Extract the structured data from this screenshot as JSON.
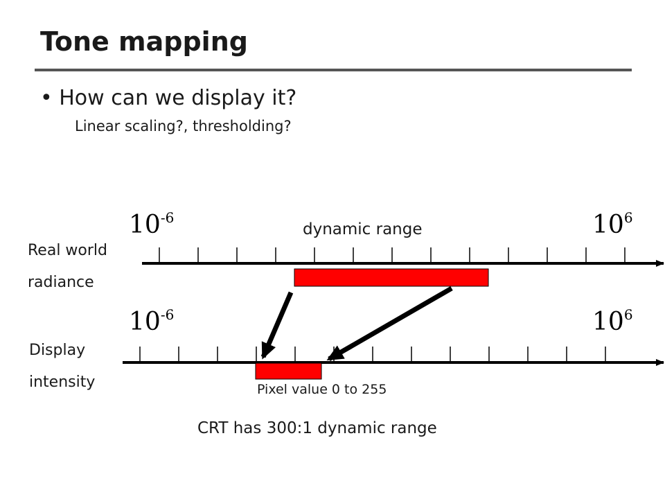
{
  "slide": {
    "title": "Tone mapping",
    "bullet": "How can we display it?",
    "sub_bullet": "Linear scaling?, thresholding?"
  },
  "real_world": {
    "label_line1": "Real world",
    "label_line2": "radiance",
    "min_base": "10",
    "min_exp": "-6",
    "max_base": "10",
    "max_exp": "6",
    "range_label": "dynamic range"
  },
  "display": {
    "label_line1": "Display",
    "label_line2": "intensity",
    "min_base": "10",
    "min_exp": "-6",
    "max_base": "10",
    "max_exp": "6",
    "pixel_label": "Pixel value 0 to 255"
  },
  "caption": "CRT has 300:1 dynamic range",
  "colors": {
    "range_fill": "#ff0000",
    "axis": "#000000",
    "rule": "#555555"
  }
}
